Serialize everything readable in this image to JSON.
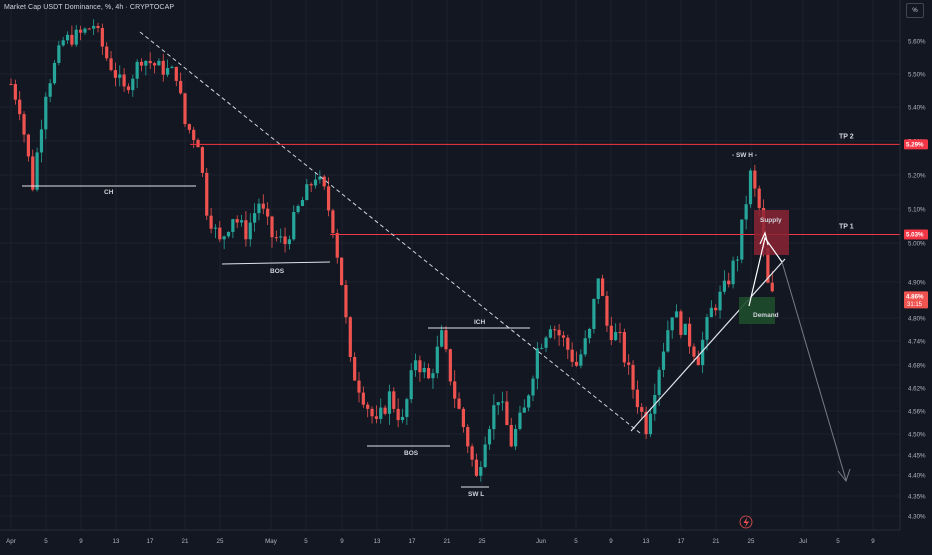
{
  "title": "Market Cap USDT Dominance, %, 4h · CRYPTOCAP",
  "scale_button": "%",
  "colors": {
    "background": "#131722",
    "up": "#26a69a",
    "down": "#ef5350",
    "resistance": "#f23645",
    "supply_fill": "#8b2332",
    "demand_fill": "#1e4d2b",
    "axis_text": "#b2b5be",
    "label_text": "#d1d4dc"
  },
  "chart_data": {
    "type": "candlestick",
    "title": "Market Cap USDT Dominance, %, 4h · CRYPTOCAP",
    "y_unit": "%",
    "ylim": [
      4.27,
      5.65
    ],
    "y_ticks": [
      "5.60%",
      "5.50%",
      "5.40%",
      "5.30%",
      "5.20%",
      "5.10%",
      "5.00%",
      "4.90%",
      "4.80%",
      "4.74%",
      "4.68%",
      "4.62%",
      "4.56%",
      "4.50%",
      "4.45%",
      "4.40%",
      "4.35%",
      "4.30%"
    ],
    "x_ticks": [
      "Apr",
      "5",
      "9",
      "13",
      "17",
      "21",
      "25",
      "May",
      "5",
      "9",
      "13",
      "17",
      "21",
      "25",
      "Jun",
      "5",
      "9",
      "13",
      "17",
      "21",
      "25",
      "Jul",
      "5",
      "9"
    ],
    "price_path": [
      {
        "d": 0,
        "v": 5.47
      },
      {
        "d": 1,
        "v": 5.4
      },
      {
        "d": 2.5,
        "v": 5.17
      },
      {
        "d": 4,
        "v": 5.45
      },
      {
        "d": 6,
        "v": 5.6
      },
      {
        "d": 8,
        "v": 5.62
      },
      {
        "d": 9.5,
        "v": 5.65
      },
      {
        "d": 11,
        "v": 5.55
      },
      {
        "d": 13,
        "v": 5.45
      },
      {
        "d": 15,
        "v": 5.55
      },
      {
        "d": 17,
        "v": 5.52
      },
      {
        "d": 19,
        "v": 5.5
      },
      {
        "d": 20,
        "v": 5.35
      },
      {
        "d": 21.5,
        "v": 5.3
      },
      {
        "d": 22.5,
        "v": 5.1
      },
      {
        "d": 24,
        "v": 5.0
      },
      {
        "d": 25.5,
        "v": 5.08
      },
      {
        "d": 27,
        "v": 5.03
      },
      {
        "d": 28.5,
        "v": 5.12
      },
      {
        "d": 30,
        "v": 5.02
      },
      {
        "d": 31.5,
        "v": 5.0
      },
      {
        "d": 33,
        "v": 5.1
      },
      {
        "d": 35,
        "v": 5.2
      },
      {
        "d": 36,
        "v": 5.15
      },
      {
        "d": 37,
        "v": 5.05
      },
      {
        "d": 38,
        "v": 4.9
      },
      {
        "d": 39,
        "v": 4.68
      },
      {
        "d": 40.5,
        "v": 4.6
      },
      {
        "d": 42,
        "v": 4.52
      },
      {
        "d": 43.5,
        "v": 4.6
      },
      {
        "d": 45,
        "v": 4.53
      },
      {
        "d": 46.5,
        "v": 4.7
      },
      {
        "d": 48,
        "v": 4.64
      },
      {
        "d": 49.5,
        "v": 4.75
      },
      {
        "d": 51,
        "v": 4.6
      },
      {
        "d": 52.5,
        "v": 4.48
      },
      {
        "d": 53.5,
        "v": 4.39
      },
      {
        "d": 54.5,
        "v": 4.5
      },
      {
        "d": 56,
        "v": 4.6
      },
      {
        "d": 57.5,
        "v": 4.48
      },
      {
        "d": 59,
        "v": 4.56
      },
      {
        "d": 60.5,
        "v": 4.72
      },
      {
        "d": 62,
        "v": 4.79
      },
      {
        "d": 63.5,
        "v": 4.74
      },
      {
        "d": 65,
        "v": 4.68
      },
      {
        "d": 66.5,
        "v": 4.76
      },
      {
        "d": 67.5,
        "v": 4.92
      },
      {
        "d": 68.5,
        "v": 4.78
      },
      {
        "d": 70,
        "v": 4.74
      },
      {
        "d": 71.5,
        "v": 4.62
      },
      {
        "d": 73,
        "v": 4.52
      },
      {
        "d": 74.5,
        "v": 4.68
      },
      {
        "d": 76,
        "v": 4.82
      },
      {
        "d": 77.5,
        "v": 4.76
      },
      {
        "d": 79,
        "v": 4.7
      },
      {
        "d": 80.5,
        "v": 4.82
      },
      {
        "d": 82,
        "v": 4.88
      },
      {
        "d": 83.5,
        "v": 4.97
      },
      {
        "d": 85,
        "v": 5.2
      },
      {
        "d": 86,
        "v": 5.1
      },
      {
        "d": 86.8,
        "v": 4.9
      },
      {
        "d": 87.5,
        "v": 4.86
      }
    ],
    "levels": [
      {
        "label": "TP 2",
        "value": 5.29,
        "price_tag": "5.29%"
      },
      {
        "label": "TP 1",
        "value": 5.025,
        "price_tag": "5.03%"
      }
    ],
    "current": {
      "price_tag": "4.86%",
      "countdown": "31:15",
      "value": 4.86
    },
    "annotations": {
      "ch": "CH",
      "bos1": "BOS",
      "bos2": "BOS",
      "ich": "ICH",
      "swl": "SW L",
      "swh": "- SW H -",
      "supply": "Supply",
      "demand": "Demand"
    }
  }
}
